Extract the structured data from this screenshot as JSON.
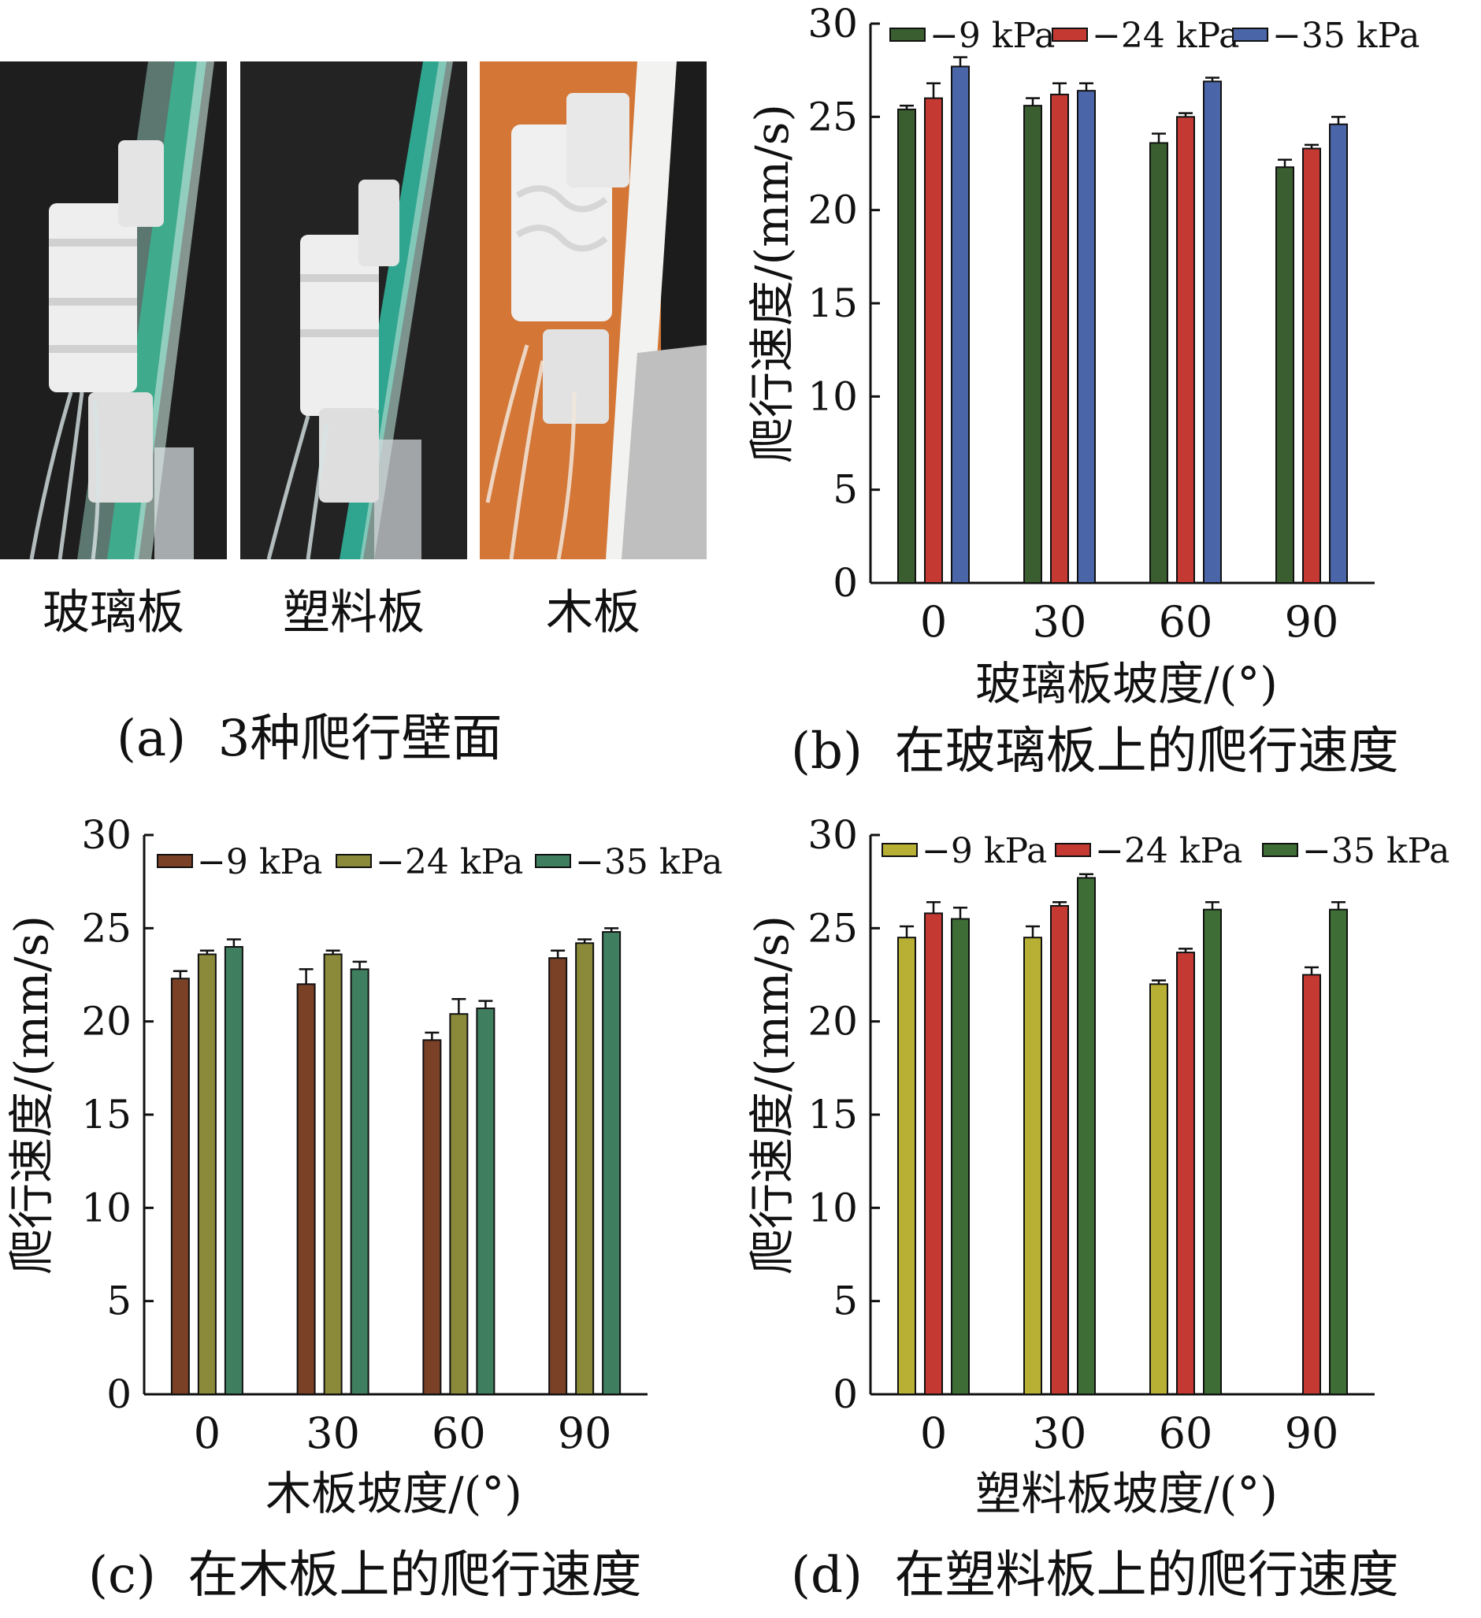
{
  "panel_a": {
    "photos": [
      {
        "label": "玻璃板"
      },
      {
        "label": "塑料板"
      },
      {
        "label": "木板"
      }
    ],
    "caption_tag": "(a)",
    "caption_text": "3种爬行壁面"
  },
  "chart_data": [
    {
      "id": "b",
      "type": "bar",
      "caption_tag": "(b)",
      "caption_text": "在玻璃板上的爬行速度",
      "xlabel": "玻璃板坡度/(°)",
      "ylabel": "爬行速度/(mm/s)",
      "categories": [
        "0",
        "30",
        "60",
        "90"
      ],
      "ylim": [
        0,
        30
      ],
      "yticks": [
        "0",
        "5",
        "10",
        "15",
        "20",
        "25",
        "30"
      ],
      "legend_position": "top",
      "error_bars": true,
      "series": [
        {
          "name": "−9 kPa",
          "color": "#3a5e2f",
          "values": [
            25.4,
            25.6,
            23.6,
            22.3
          ],
          "errors": [
            0.2,
            0.4,
            0.5,
            0.4
          ]
        },
        {
          "name": "−24 kPa",
          "color": "#c43a33",
          "values": [
            26.0,
            26.2,
            25.0,
            23.3
          ],
          "errors": [
            0.8,
            0.6,
            0.2,
            0.2
          ]
        },
        {
          "name": "−35 kPa",
          "color": "#4a66a8",
          "values": [
            27.7,
            26.4,
            26.9,
            24.6
          ],
          "errors": [
            0.5,
            0.4,
            0.2,
            0.4
          ]
        }
      ]
    },
    {
      "id": "c",
      "type": "bar",
      "caption_tag": "(c)",
      "caption_text": "在木板上的爬行速度",
      "xlabel": "木板坡度/(°)",
      "ylabel": "爬行速度/(mm/s)",
      "categories": [
        "0",
        "30",
        "60",
        "90"
      ],
      "ylim": [
        0,
        30
      ],
      "yticks": [
        "0",
        "5",
        "10",
        "15",
        "20",
        "25",
        "30"
      ],
      "legend_position": "top",
      "error_bars": true,
      "series": [
        {
          "name": "−9 kPa",
          "color": "#7a4127",
          "values": [
            22.3,
            22.0,
            19.0,
            23.4
          ],
          "errors": [
            0.4,
            0.8,
            0.4,
            0.4
          ]
        },
        {
          "name": "−24 kPa",
          "color": "#8a8a3a",
          "values": [
            23.6,
            23.6,
            20.4,
            24.2
          ],
          "errors": [
            0.2,
            0.2,
            0.8,
            0.2
          ]
        },
        {
          "name": "−35 kPa",
          "color": "#3f7f5f",
          "values": [
            24.0,
            22.8,
            20.7,
            24.8
          ],
          "errors": [
            0.4,
            0.4,
            0.4,
            0.2
          ]
        }
      ]
    },
    {
      "id": "d",
      "type": "bar",
      "caption_tag": "(d)",
      "caption_text": "在塑料板上的爬行速度",
      "xlabel": "塑料板坡度/(°)",
      "ylabel": "爬行速度/(mm/s)",
      "categories": [
        "0",
        "30",
        "60",
        "90"
      ],
      "ylim": [
        0,
        30
      ],
      "yticks": [
        "0",
        "5",
        "10",
        "15",
        "20",
        "25",
        "30"
      ],
      "legend_position": "top",
      "error_bars": true,
      "series": [
        {
          "name": "−9 kPa",
          "color": "#b8b035",
          "values": [
            24.5,
            24.5,
            22.0,
            null
          ],
          "errors": [
            0.6,
            0.6,
            0.2,
            null
          ]
        },
        {
          "name": "−24 kPa",
          "color": "#c43a33",
          "values": [
            25.8,
            26.2,
            23.7,
            22.5
          ],
          "errors": [
            0.6,
            0.2,
            0.2,
            0.4
          ]
        },
        {
          "name": "−35 kPa",
          "color": "#3e6e36",
          "values": [
            25.5,
            27.7,
            26.0,
            26.0
          ],
          "errors": [
            0.6,
            0.2,
            0.4,
            0.4
          ]
        }
      ]
    }
  ]
}
